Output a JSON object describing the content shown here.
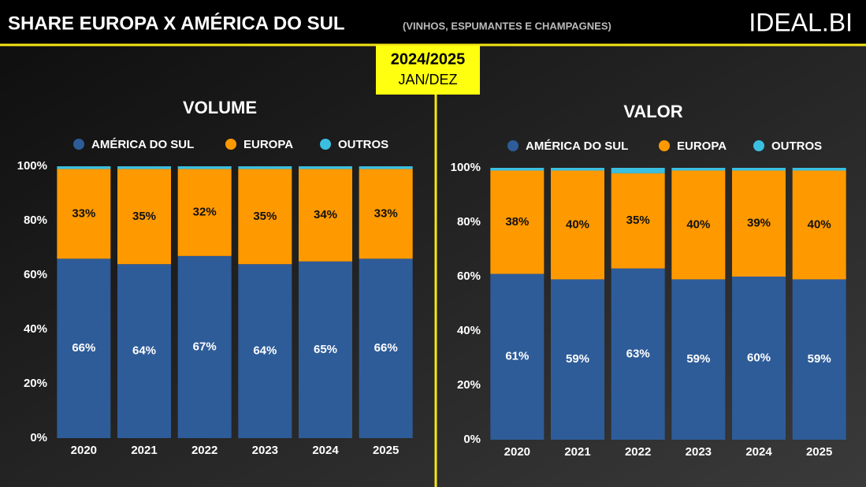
{
  "header": {
    "title": "SHARE EUROPA X AMÉRICA DO SUL",
    "subtitle": "(VINHOS, ESPUMANTES E CHAMPAGNES)",
    "logo": "IDEAL.BI",
    "period": "2024/2025",
    "months": "JAN/DEZ"
  },
  "chart_data": [
    {
      "type": "stacked-bar",
      "title": "VOLUME",
      "categories": [
        "2020",
        "2021",
        "2022",
        "2023",
        "2024",
        "2025"
      ],
      "series": [
        {
          "name": "AMÉRICA DO SUL",
          "color": "#2e5c99",
          "values": [
            66,
            64,
            67,
            64,
            65,
            66
          ],
          "value_labels": [
            "66%",
            "64%",
            "67%",
            "64%",
            "65%",
            "66%"
          ]
        },
        {
          "name": "EUROPA",
          "color": "#ff9900",
          "values": [
            33,
            35,
            32,
            35,
            34,
            33
          ],
          "value_labels": [
            "33%",
            "35%",
            "32%",
            "35%",
            "34%",
            "33%"
          ]
        },
        {
          "name": "OUTROS",
          "color": "#3bbfe0",
          "values": [
            1,
            1,
            1,
            1,
            1,
            1
          ]
        }
      ],
      "ylim": [
        0,
        100
      ],
      "yticks": [
        {
          "value": 0,
          "label": "0%"
        },
        {
          "value": 20,
          "label": "20%"
        },
        {
          "value": 40,
          "label": "40%"
        },
        {
          "value": 60,
          "label": "60%"
        },
        {
          "value": 80,
          "label": "80%"
        },
        {
          "value": 100,
          "label": "100%"
        }
      ]
    },
    {
      "type": "stacked-bar",
      "title": "VALOR",
      "categories": [
        "2020",
        "2021",
        "2022",
        "2023",
        "2024",
        "2025"
      ],
      "series": [
        {
          "name": "AMÉRICA DO SUL",
          "color": "#2e5c99",
          "values": [
            61,
            59,
            63,
            59,
            60,
            59
          ],
          "value_labels": [
            "61%",
            "59%",
            "63%",
            "59%",
            "60%",
            "59%"
          ]
        },
        {
          "name": "EUROPA",
          "color": "#ff9900",
          "values": [
            38,
            40,
            35,
            40,
            39,
            40
          ],
          "value_labels": [
            "38%",
            "40%",
            "35%",
            "40%",
            "39%",
            "40%"
          ]
        },
        {
          "name": "OUTROS",
          "color": "#3bbfe0",
          "values": [
            1,
            1,
            2,
            1,
            1,
            1
          ]
        }
      ],
      "ylim": [
        0,
        100
      ],
      "yticks": [
        {
          "value": 0,
          "label": "0%"
        },
        {
          "value": 20,
          "label": "20%"
        },
        {
          "value": 40,
          "label": "40%"
        },
        {
          "value": 60,
          "label": "60%"
        },
        {
          "value": 80,
          "label": "80%"
        },
        {
          "value": 100,
          "label": "100%"
        }
      ]
    }
  ]
}
